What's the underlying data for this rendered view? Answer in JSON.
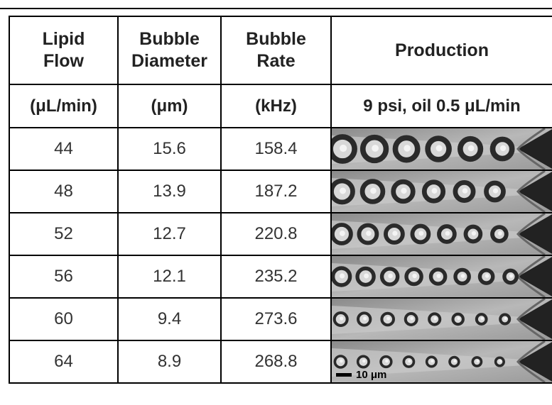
{
  "header": {
    "columns": [
      "Lipid Flow",
      "Bubble Diameter",
      "Bubble Rate",
      "Production"
    ],
    "units": [
      "(μL/min)",
      "(μm)",
      "(kHz)",
      "9 psi, oil 0.5 μL/min"
    ]
  },
  "table": {
    "rows": [
      [
        44,
        15.6,
        158.4
      ],
      [
        48,
        13.9,
        187.2
      ],
      [
        52,
        12.7,
        220.8
      ],
      [
        56,
        12.1,
        235.2
      ],
      [
        60,
        9.4,
        273.6
      ],
      [
        64,
        8.9,
        268.8
      ]
    ]
  },
  "scale_bar": "10 μm"
}
